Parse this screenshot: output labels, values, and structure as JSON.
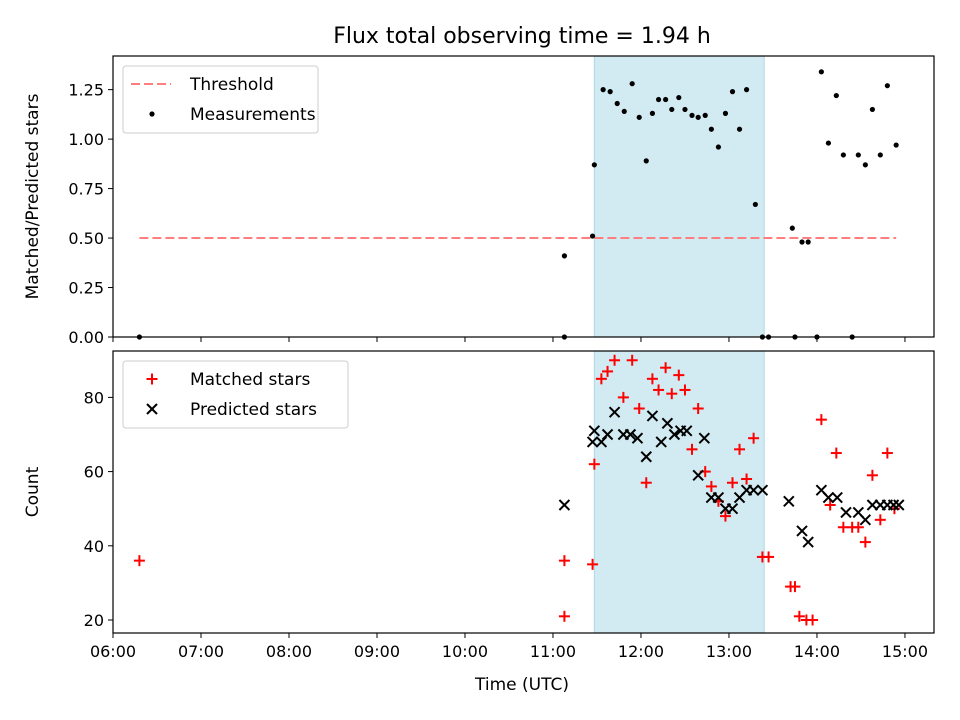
{
  "figure": {
    "title": "Flux total observing time = 1.94 h",
    "xlabel": "Time (UTC)"
  },
  "chart_data": [
    {
      "type": "scatter",
      "panel": "top",
      "ylabel": "Matched/Predicted stars",
      "ylim": [
        0,
        1.42
      ],
      "xlim": [
        6.0,
        15.33
      ],
      "yticks": [
        "0.00",
        "0.25",
        "0.50",
        "0.75",
        "1.00",
        "1.25"
      ],
      "shaded_interval": {
        "x_start": 11.47,
        "x_end": 13.4,
        "color": "#add8e6"
      },
      "threshold": {
        "name": "Threshold",
        "y": 0.5,
        "x_start": 6.3,
        "x_end": 14.9,
        "color": "#ff7f7f"
      },
      "legend_position": "upper-left",
      "series": [
        {
          "name": "Measurements",
          "marker": "dot",
          "color": "#000000",
          "x": [
            6.3,
            11.13,
            11.13,
            11.45,
            11.47,
            11.57,
            11.65,
            11.73,
            11.81,
            11.9,
            11.98,
            12.06,
            12.13,
            12.2,
            12.28,
            12.35,
            12.43,
            12.5,
            12.58,
            12.65,
            12.73,
            12.8,
            12.88,
            12.96,
            13.04,
            13.12,
            13.2,
            13.3,
            13.38,
            13.45,
            13.72,
            13.75,
            13.83,
            13.9,
            14.0,
            14.05,
            14.13,
            14.22,
            14.3,
            14.4,
            14.47,
            14.55,
            14.63,
            14.72,
            14.8,
            14.9
          ],
          "y": [
            0.0,
            0.41,
            0.0,
            0.51,
            0.87,
            1.25,
            1.24,
            1.18,
            1.14,
            1.28,
            1.11,
            0.89,
            1.13,
            1.2,
            1.2,
            1.15,
            1.21,
            1.15,
            1.12,
            1.11,
            1.12,
            1.05,
            0.96,
            1.13,
            1.24,
            1.05,
            1.25,
            0.67,
            0.0,
            0.0,
            0.55,
            0.0,
            0.48,
            0.48,
            0.0,
            1.34,
            0.98,
            1.22,
            0.92,
            0.0,
            0.92,
            0.87,
            1.15,
            0.92,
            1.27,
            0.97
          ]
        }
      ]
    },
    {
      "type": "scatter",
      "panel": "bottom",
      "ylabel": "Count",
      "ylim": [
        16.5,
        92.5
      ],
      "xlim": [
        6.0,
        15.33
      ],
      "yticks": [
        "20",
        "40",
        "60",
        "80"
      ],
      "xticks": [
        "06:00",
        "07:00",
        "08:00",
        "09:00",
        "10:00",
        "11:00",
        "12:00",
        "13:00",
        "14:00",
        "15:00"
      ],
      "shaded_interval": {
        "x_start": 11.47,
        "x_end": 13.4,
        "color": "#add8e6"
      },
      "legend_position": "upper-left",
      "series": [
        {
          "name": "Matched stars",
          "marker": "plus",
          "color": "#ff0000",
          "x": [
            6.3,
            11.13,
            11.13,
            11.45,
            11.47,
            11.55,
            11.62,
            11.7,
            11.8,
            11.9,
            11.98,
            12.06,
            12.13,
            12.2,
            12.28,
            12.35,
            12.43,
            12.5,
            12.58,
            12.65,
            12.73,
            12.8,
            12.88,
            12.96,
            13.04,
            13.12,
            13.2,
            13.28,
            13.38,
            13.45,
            13.7,
            13.75,
            13.8,
            13.88,
            13.95,
            14.05,
            14.15,
            14.22,
            14.3,
            14.4,
            14.47,
            14.55,
            14.63,
            14.72,
            14.8,
            14.88
          ],
          "y": [
            36,
            36,
            21,
            35,
            62,
            85,
            87,
            90,
            80,
            90,
            77,
            57,
            85,
            82,
            88,
            81,
            86,
            82,
            66,
            77,
            60,
            56,
            52,
            48,
            57,
            66,
            58,
            69,
            37,
            37,
            29,
            29,
            21,
            20,
            20,
            74,
            51,
            65,
            45,
            45,
            45,
            41,
            59,
            47,
            65,
            50
          ]
        },
        {
          "name": "Predicted stars",
          "marker": "x",
          "color": "#000000",
          "x": [
            11.13,
            11.45,
            11.47,
            11.55,
            11.62,
            11.7,
            11.8,
            11.88,
            11.96,
            12.06,
            12.13,
            12.23,
            12.3,
            12.38,
            12.45,
            12.52,
            12.65,
            12.72,
            12.8,
            12.88,
            12.96,
            13.04,
            13.12,
            13.2,
            13.28,
            13.38,
            13.68,
            13.83,
            13.9,
            14.05,
            14.13,
            14.23,
            14.33,
            14.47,
            14.55,
            14.63,
            14.72,
            14.8,
            14.87,
            14.93
          ],
          "y": [
            51,
            68,
            71,
            68,
            70,
            76,
            70,
            70,
            69,
            64,
            75,
            68,
            73,
            70,
            71,
            71,
            59,
            69,
            53,
            53,
            50,
            50,
            53,
            55,
            55,
            55,
            52,
            44,
            41,
            55,
            53,
            53,
            49,
            49,
            47,
            51,
            51,
            51,
            51,
            51
          ]
        }
      ]
    }
  ]
}
